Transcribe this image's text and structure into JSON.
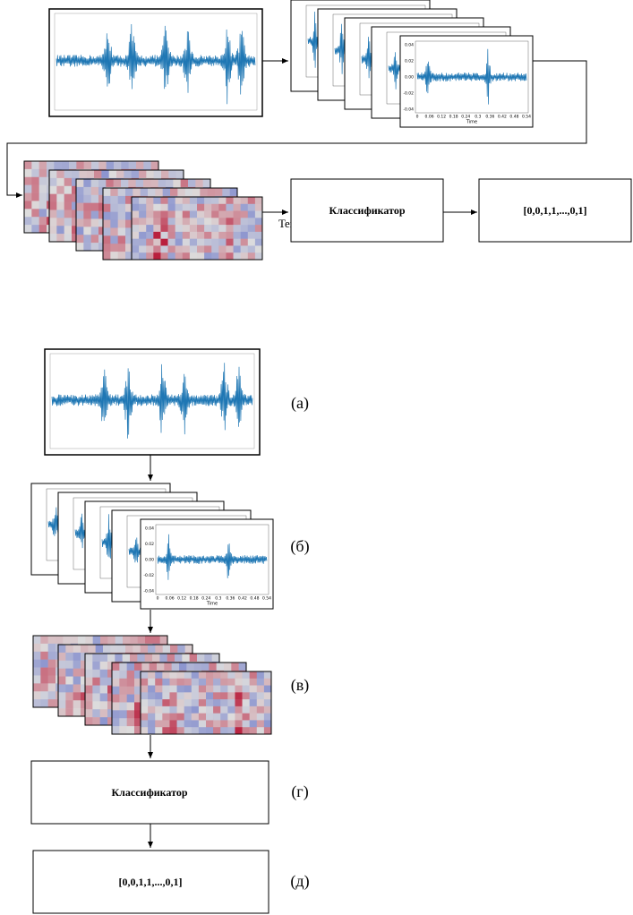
{
  "top": {
    "link_label": "Text",
    "classifier": "Классификатор",
    "output": "[0,0,1,1,...,0,1]"
  },
  "bottom": {
    "labels": [
      "(а)",
      "(б)",
      "(в)",
      "(г)",
      "(д)"
    ],
    "classifier": "Классификатор",
    "output": "[0,0,1,1,...,0,1]"
  },
  "waveform_panel": {
    "y_ticks": [
      "0.04",
      "0.02",
      "0.00",
      "-0.02",
      "-0.04"
    ],
    "x_ticks": [
      "0",
      "0.06",
      "0.12",
      "0.18",
      "0.24",
      "0.3",
      "0.36",
      "0.42",
      "0.48",
      "0.54"
    ],
    "x_label": "Time"
  }
}
